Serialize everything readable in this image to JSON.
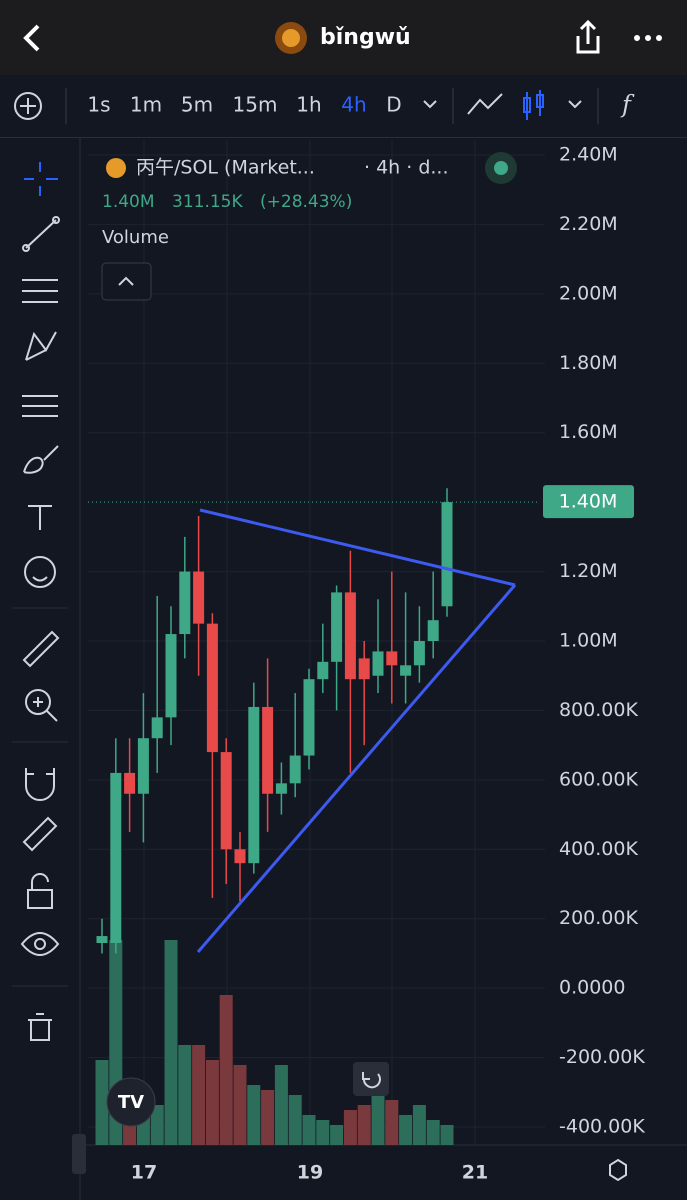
{
  "header": {
    "title": "bǐngwǔ"
  },
  "timeframes": [
    "1s",
    "1m",
    "5m",
    "15m",
    "1h",
    "4h",
    "D"
  ],
  "active_timeframe": "4h",
  "legend": {
    "symbol": "丙午/SOL (Market...",
    "interval": "· 4h · d...",
    "price": "1.40M",
    "change": "311.15K",
    "change_pct": "(+28.43%)",
    "indicator": "Volume"
  },
  "chart_data": {
    "type": "candlestick",
    "open": [
      0.13,
      0.13,
      0.62,
      0.56,
      0.72,
      0.78,
      1.02,
      1.2,
      1.05,
      0.68,
      0.4,
      0.36,
      0.81,
      0.56,
      0.59,
      0.67,
      0.89,
      0.94,
      1.14,
      0.95,
      0.9,
      0.97,
      0.9,
      0.93,
      1.0,
      1.1
    ],
    "high": [
      0.2,
      0.72,
      0.72,
      0.85,
      1.13,
      1.1,
      1.3,
      1.36,
      1.08,
      0.72,
      0.45,
      0.88,
      0.95,
      0.65,
      0.85,
      0.92,
      1.05,
      1.16,
      1.26,
      1.0,
      1.12,
      1.2,
      1.14,
      1.1,
      1.2,
      1.44
    ],
    "low": [
      0.1,
      0.1,
      0.45,
      0.42,
      0.62,
      0.7,
      0.95,
      0.9,
      0.26,
      0.3,
      0.25,
      0.33,
      0.45,
      0.5,
      0.55,
      0.63,
      0.85,
      0.8,
      0.62,
      0.7,
      0.85,
      0.82,
      0.82,
      0.88,
      0.95,
      1.07
    ],
    "close": [
      0.15,
      0.62,
      0.56,
      0.72,
      0.78,
      1.02,
      1.2,
      1.05,
      0.68,
      0.4,
      0.36,
      0.81,
      0.56,
      0.59,
      0.67,
      0.89,
      0.94,
      1.14,
      0.89,
      0.89,
      0.97,
      0.93,
      0.93,
      1.0,
      1.06,
      1.4
    ],
    "volume": [
      85,
      205,
      65,
      50,
      40,
      205,
      100,
      100,
      85,
      150,
      80,
      60,
      55,
      80,
      50,
      30,
      25,
      20,
      35,
      40,
      80,
      45,
      30,
      40,
      25,
      20
    ],
    "vlim": [
      0,
      250
    ],
    "up_color": "#3fa886",
    "down_color": "#e84a4a",
    "ylim": [
      -0.4,
      2.4
    ],
    "yticks": [
      {
        "value": 2.4,
        "label": "2.40M"
      },
      {
        "value": 2.2,
        "label": "2.20M"
      },
      {
        "value": 2.0,
        "label": "2.00M"
      },
      {
        "value": 1.8,
        "label": "1.80M"
      },
      {
        "value": 1.6,
        "label": "1.60M"
      },
      {
        "value": 1.2,
        "label": "1.20M"
      },
      {
        "value": 1.0,
        "label": "1.00M"
      },
      {
        "value": 0.8,
        "label": "800.00K"
      },
      {
        "value": 0.6,
        "label": "600.00K"
      },
      {
        "value": 0.4,
        "label": "400.00K"
      },
      {
        "value": 0.2,
        "label": "200.00K"
      },
      {
        "value": 0,
        "label": "0.0000"
      },
      {
        "value": -0.2,
        "label": "-200.00K"
      },
      {
        "value": -0.4,
        "label": "-400.00K"
      }
    ],
    "last_price": {
      "value": 1.4,
      "label": "1.40M"
    },
    "xticks": [
      "17",
      "19",
      "21"
    ],
    "grid": true
  }
}
